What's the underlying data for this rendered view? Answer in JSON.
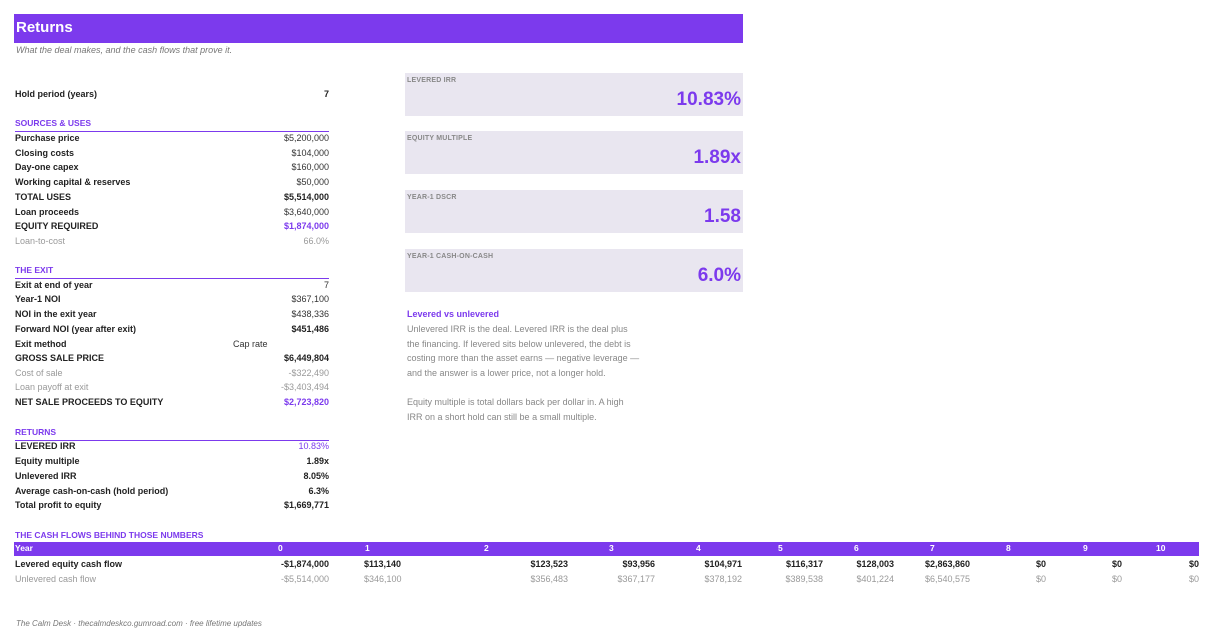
{
  "title": "Returns",
  "subtitle": "What the deal makes, and the cash flows that prove it.",
  "hold": {
    "label": "Hold period (years)",
    "value": "7"
  },
  "sources_uses": {
    "header": "SOURCES & USES",
    "rows": [
      {
        "label": "Purchase price",
        "value": "$5,200,000"
      },
      {
        "label": "Closing costs",
        "value": "$104,000"
      },
      {
        "label": "Day-one capex",
        "value": "$160,000"
      },
      {
        "label": "Working capital & reserves",
        "value": "$50,000"
      },
      {
        "label": "TOTAL USES",
        "value": "$5,514,000"
      },
      {
        "label": "Loan proceeds",
        "value": "$3,640,000"
      },
      {
        "label": "EQUITY REQUIRED",
        "value": "$1,874,000"
      },
      {
        "label": "Loan-to-cost",
        "value": "66.0%"
      }
    ]
  },
  "exit": {
    "header": "THE EXIT",
    "rows": [
      {
        "label": "Exit at end of year",
        "value": "7"
      },
      {
        "label": "Year-1 NOI",
        "value": "$367,100"
      },
      {
        "label": "NOI in the exit year",
        "value": "$438,336"
      },
      {
        "label": "Forward NOI (year after exit)",
        "value": "$451,486"
      },
      {
        "label": "Exit method",
        "value": "Cap rate"
      },
      {
        "label": "GROSS SALE PRICE",
        "value": "$6,449,804"
      },
      {
        "label": "Cost of sale",
        "value": "-$322,490"
      },
      {
        "label": "Loan payoff at exit",
        "value": "-$3,403,494"
      },
      {
        "label": "NET SALE PROCEEDS TO EQUITY",
        "value": "$2,723,820"
      }
    ]
  },
  "returns": {
    "header": "RETURNS",
    "rows": [
      {
        "label": "LEVERED IRR",
        "value": "10.83%"
      },
      {
        "label": "Equity multiple",
        "value": "1.89x"
      },
      {
        "label": "Unlevered IRR",
        "value": "8.05%"
      },
      {
        "label": "Average cash-on-cash (hold period)",
        "value": "6.3%"
      },
      {
        "label": "Total profit to equity",
        "value": "$1,669,771"
      }
    ]
  },
  "kpis": [
    {
      "label": "LEVERED IRR",
      "value": "10.83%"
    },
    {
      "label": "EQUITY MULTIPLE",
      "value": "1.89x"
    },
    {
      "label": "YEAR-1 DSCR",
      "value": "1.58"
    },
    {
      "label": "YEAR-1 CASH-ON-CASH",
      "value": "6.0%"
    }
  ],
  "notes": {
    "heading": "Levered vs unlevered",
    "lines": [
      "Unlevered IRR is the deal. Levered IRR is the deal plus",
      "the financing. If levered sits below unlevered, the debt is",
      "costing more than the asset earns — negative leverage —",
      "and the answer is a lower price, not a longer hold.",
      "Equity multiple is total dollars back per dollar in. A high",
      "IRR on a short hold can still be a small multiple."
    ]
  },
  "cashflows": {
    "header": "THE CASH FLOWS BEHIND THOSE NUMBERS",
    "year_label": "Year",
    "years": [
      "0",
      "1",
      "2",
      "3",
      "4",
      "5",
      "6",
      "7",
      "8",
      "9",
      "10"
    ],
    "levered_label": "Levered equity cash flow",
    "unlevered_label": "Unlevered cash flow",
    "levered": [
      "-$1,874,000",
      "$113,140",
      "$123,523",
      "$93,956",
      "$104,971",
      "$116,317",
      "$128,003",
      "$2,863,860",
      "$0",
      "$0",
      "$0"
    ],
    "unlevered": [
      "-$5,514,000",
      "$346,100",
      "$356,483",
      "$367,177",
      "$378,192",
      "$389,538",
      "$401,224",
      "$6,540,575",
      "$0",
      "$0",
      "$0"
    ]
  },
  "footer": "The Calm Desk  ·  thecalmdeskco.gumroad.com  ·  free lifetime updates",
  "colors": {
    "accent": "#7c3aed",
    "kpi_bg": "#e9e6f0",
    "muted": "#999999"
  }
}
